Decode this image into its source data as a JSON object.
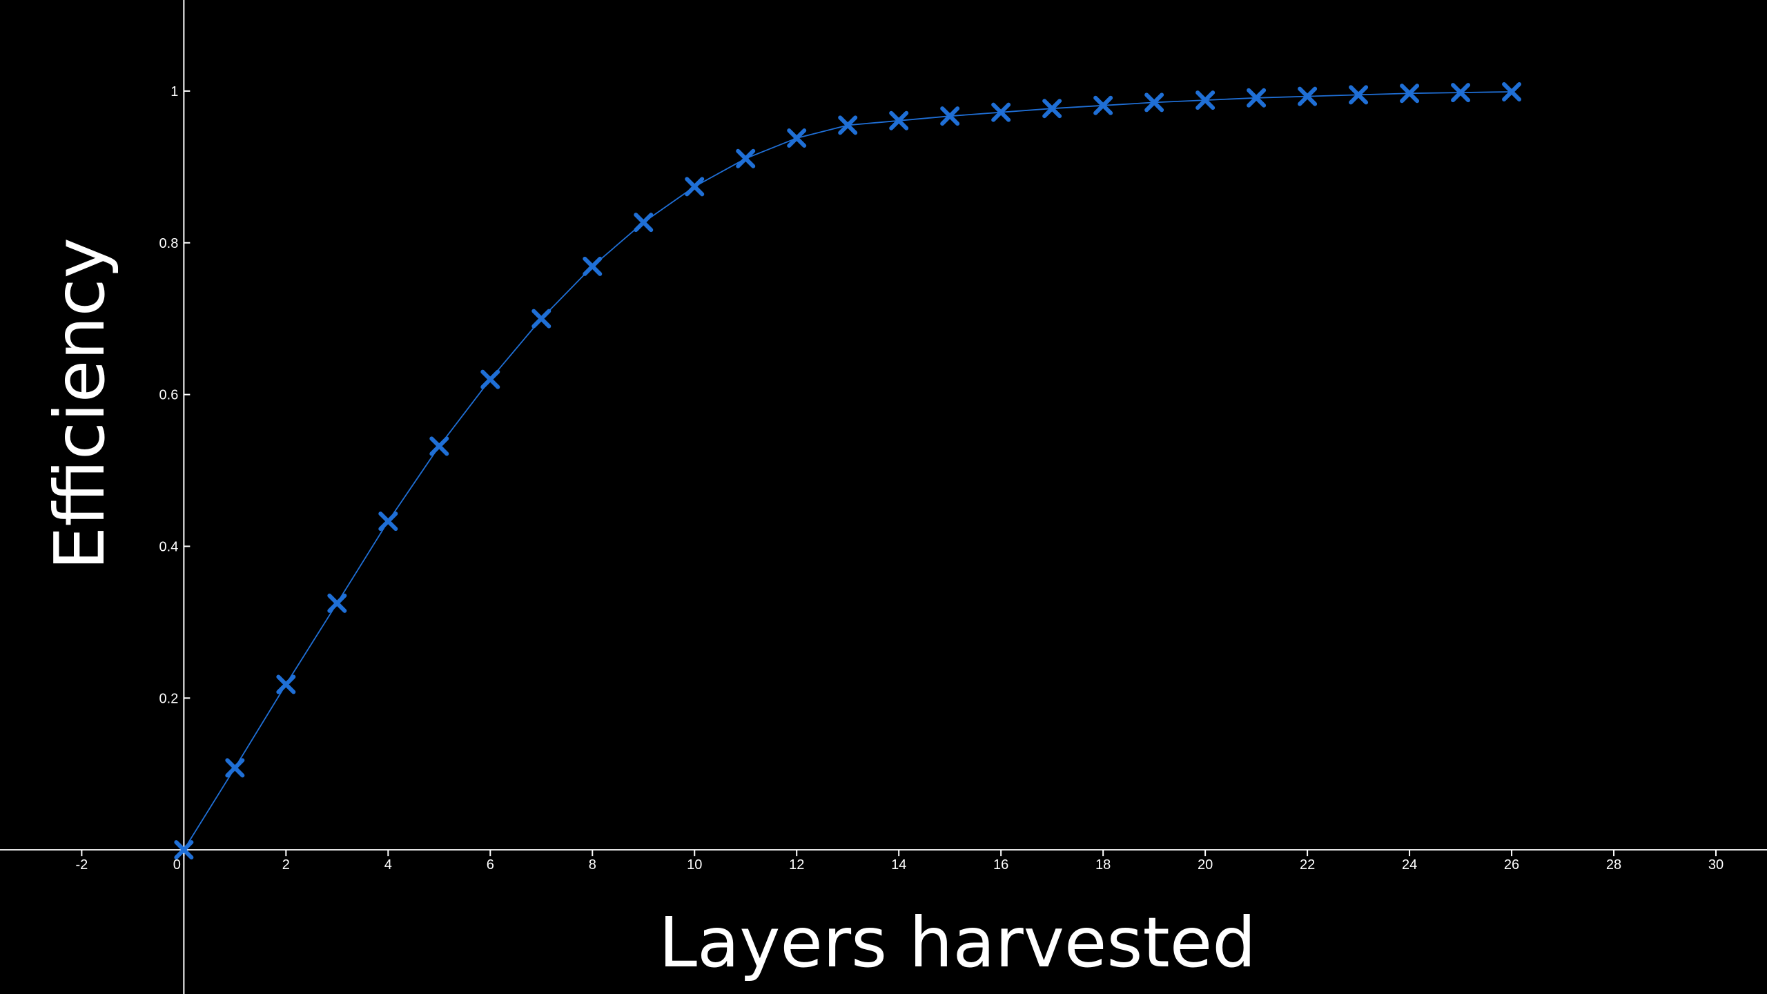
{
  "chart_data": {
    "type": "line",
    "xlabel": "Layers harvested",
    "ylabel": "Efficiency",
    "xlim": [
      -3.6,
      31
    ],
    "ylim": [
      -0.19,
      1.12
    ],
    "x_ticks": [
      -2,
      0,
      2,
      4,
      6,
      8,
      10,
      12,
      14,
      16,
      18,
      20,
      22,
      24,
      26,
      28,
      30
    ],
    "y_ticks": [
      0.2,
      0.4,
      0.6,
      0.8,
      1
    ],
    "x_tick_labels": [
      "-2",
      "0",
      "2",
      "4",
      "6",
      "8",
      "10",
      "12",
      "14",
      "16",
      "18",
      "20",
      "22",
      "24",
      "26",
      "28",
      "30"
    ],
    "y_tick_labels": [
      "0.2",
      "0.4",
      "0.6",
      "0.8",
      "1"
    ],
    "grid": false,
    "marker": "x",
    "series_color": "#1f6fd6",
    "axis_color": "#ffffff",
    "background": "#000000",
    "series": [
      {
        "x": [
          0,
          1,
          2,
          3,
          4,
          5,
          6,
          7,
          8,
          9,
          10,
          11,
          12,
          13,
          14,
          15,
          16,
          17,
          18,
          19,
          20,
          21,
          22,
          23,
          24,
          25,
          26
        ],
        "y": [
          0.0,
          0.108,
          0.218,
          0.325,
          0.433,
          0.532,
          0.62,
          0.7,
          0.769,
          0.827,
          0.874,
          0.911,
          0.938,
          0.955,
          0.961,
          0.967,
          0.972,
          0.977,
          0.981,
          0.985,
          0.988,
          0.991,
          0.993,
          0.995,
          0.997,
          0.998,
          0.999
        ]
      }
    ]
  }
}
